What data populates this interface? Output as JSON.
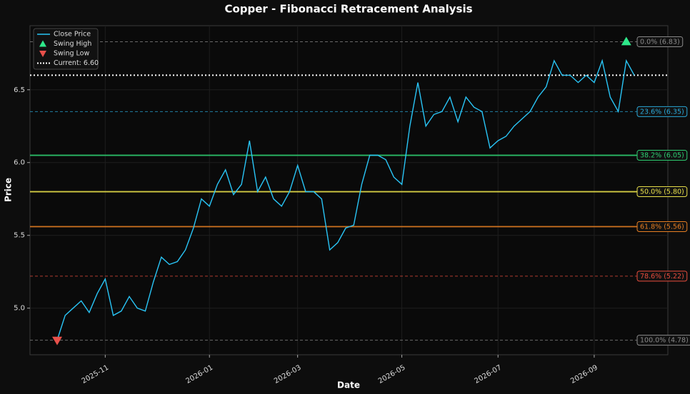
{
  "chart_data": {
    "type": "line",
    "title": "Copper - Fibonacci Retracement Analysis",
    "x_label": "Date",
    "y_label": "Price",
    "categories": [
      null,
      null,
      null,
      null,
      null,
      null,
      "2025-11",
      null,
      null,
      null,
      null,
      null,
      null,
      null,
      null,
      null,
      null,
      null,
      null,
      "2026-01",
      null,
      null,
      null,
      null,
      null,
      null,
      null,
      null,
      null,
      null,
      "2026-03",
      null,
      null,
      null,
      null,
      null,
      null,
      null,
      null,
      null,
      null,
      null,
      null,
      "2026-05",
      null,
      null,
      null,
      null,
      null,
      null,
      null,
      null,
      null,
      null,
      null,
      "2026-07",
      null,
      null,
      null,
      null,
      null,
      null,
      null,
      null,
      null,
      null,
      null,
      "2026-09",
      null,
      null,
      null,
      null,
      null
    ],
    "series": [
      {
        "name": "Close Price",
        "color": "#29c5f6",
        "kind": "line",
        "values": [
          4.78,
          4.95,
          5.0,
          5.05,
          4.97,
          5.1,
          5.2,
          4.95,
          4.98,
          5.08,
          5.0,
          4.98,
          5.18,
          5.35,
          5.3,
          5.32,
          5.4,
          5.55,
          5.75,
          5.7,
          5.85,
          5.95,
          5.78,
          5.85,
          6.15,
          5.8,
          5.9,
          5.75,
          5.7,
          5.8,
          5.98,
          5.8,
          5.8,
          5.75,
          5.4,
          5.45,
          5.55,
          5.57,
          5.85,
          6.05,
          6.05,
          6.02,
          5.9,
          5.85,
          6.25,
          6.55,
          6.25,
          6.33,
          6.35,
          6.45,
          6.28,
          6.45,
          6.38,
          6.35,
          6.1,
          6.15,
          6.18,
          6.25,
          6.3,
          6.35,
          6.45,
          6.52,
          6.7,
          6.6,
          6.6,
          6.55,
          6.6,
          6.55,
          6.7,
          6.45,
          6.35,
          6.7,
          6.6
        ]
      },
      {
        "name": "Swing High",
        "color": "#2ee88a",
        "kind": "marker-up",
        "values": [
          null,
          null,
          null,
          null,
          null,
          null,
          null,
          null,
          null,
          null,
          null,
          null,
          null,
          null,
          null,
          null,
          null,
          null,
          null,
          null,
          null,
          null,
          null,
          null,
          null,
          null,
          null,
          null,
          null,
          null,
          null,
          null,
          null,
          null,
          null,
          null,
          null,
          null,
          null,
          null,
          null,
          null,
          null,
          null,
          null,
          null,
          null,
          null,
          null,
          null,
          null,
          null,
          null,
          null,
          null,
          null,
          null,
          null,
          null,
          null,
          null,
          null,
          null,
          null,
          null,
          null,
          null,
          null,
          null,
          null,
          null,
          6.83,
          null
        ]
      },
      {
        "name": "Swing Low",
        "color": "#e8504a",
        "kind": "marker-down",
        "values": [
          4.78,
          null,
          null,
          null,
          null,
          null,
          null,
          null,
          null,
          null,
          null,
          null,
          null,
          null,
          null,
          null,
          null,
          null,
          null,
          null,
          null,
          null,
          null,
          null,
          null,
          null,
          null,
          null,
          null,
          null,
          null,
          null,
          null,
          null,
          null,
          null,
          null,
          null,
          null,
          null,
          null,
          null,
          null,
          null,
          null,
          null,
          null,
          null,
          null,
          null,
          null,
          null,
          null,
          null,
          null,
          null,
          null,
          null,
          null,
          null,
          null,
          null,
          null,
          null,
          null,
          null,
          null,
          null,
          null,
          null,
          null,
          null,
          null
        ]
      }
    ],
    "current": {
      "label": "Current: 6.60",
      "value": 6.6,
      "color": "#ffffff"
    },
    "fib_levels": [
      {
        "label": "0.0% (6.83)",
        "value": 6.83,
        "color": "#8a8a8a",
        "dashed": true
      },
      {
        "label": "23.6% (6.35)",
        "value": 6.35,
        "color": "#2aa8d8",
        "dashed": true
      },
      {
        "label": "38.2% (6.05)",
        "value": 6.05,
        "color": "#2ecc71",
        "dashed": false
      },
      {
        "label": "50.0% (5.80)",
        "value": 5.8,
        "color": "#e8e04a",
        "dashed": false
      },
      {
        "label": "61.8% (5.56)",
        "value": 5.56,
        "color": "#e67e22",
        "dashed": false
      },
      {
        "label": "78.6% (5.22)",
        "value": 5.22,
        "color": "#e74c3c",
        "dashed": true
      },
      {
        "label": "100.0% (4.78)",
        "value": 4.78,
        "color": "#8a8a8a",
        "dashed": true
      }
    ],
    "ylim": [
      4.68,
      6.94
    ],
    "yticks": [
      {
        "value": 5.0,
        "label": "5.0"
      },
      {
        "value": 5.5,
        "label": "5.5"
      },
      {
        "value": 6.0,
        "label": "6.0"
      },
      {
        "value": 6.5,
        "label": "6.5"
      }
    ],
    "grid": true
  }
}
